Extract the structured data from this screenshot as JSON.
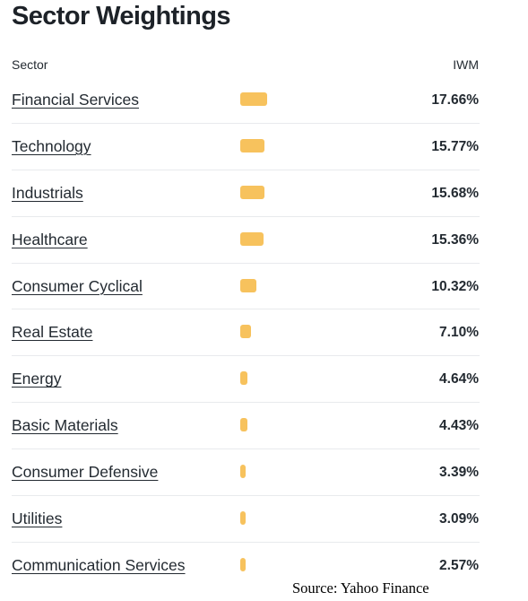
{
  "title": "Sector Weightings",
  "header": {
    "sector_label": "Sector",
    "fund_label": "IWM"
  },
  "colors": {
    "bar": "#f7c25d",
    "divider": "#e8eaed"
  },
  "sectors": [
    {
      "name": "Financial Services",
      "pct_label": "17.66%",
      "value": 17.66
    },
    {
      "name": "Technology",
      "pct_label": "15.77%",
      "value": 15.77
    },
    {
      "name": "Industrials",
      "pct_label": "15.68%",
      "value": 15.68
    },
    {
      "name": "Healthcare",
      "pct_label": "15.36%",
      "value": 15.36
    },
    {
      "name": "Consumer Cyclical",
      "pct_label": "10.32%",
      "value": 10.32
    },
    {
      "name": "Real Estate",
      "pct_label": "7.10%",
      "value": 7.1
    },
    {
      "name": "Energy",
      "pct_label": "4.64%",
      "value": 4.64
    },
    {
      "name": "Basic Materials",
      "pct_label": "4.43%",
      "value": 4.43
    },
    {
      "name": "Consumer Defensive",
      "pct_label": "3.39%",
      "value": 3.39
    },
    {
      "name": "Utilities",
      "pct_label": "3.09%",
      "value": 3.09
    },
    {
      "name": "Communication Services",
      "pct_label": "2.57%",
      "value": 2.57
    }
  ],
  "source": "Source: Yahoo Finance"
}
